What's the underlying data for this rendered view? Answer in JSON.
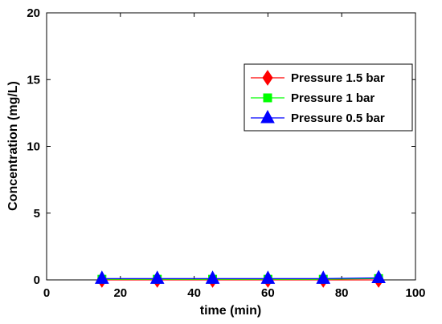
{
  "chart_data": {
    "type": "line",
    "title": "",
    "xlabel": "time (min)",
    "ylabel": "Concentration (mg/L)",
    "xlim": [
      0,
      100
    ],
    "ylim": [
      0,
      20
    ],
    "xticks": [
      0,
      20,
      40,
      60,
      80,
      100
    ],
    "yticks": [
      0,
      5,
      10,
      15,
      20
    ],
    "grid": false,
    "legend_position": "upper-right",
    "x": [
      15,
      30,
      45,
      60,
      75,
      90
    ],
    "series": [
      {
        "name": "Pressure 1.5 bar",
        "color": "#ff0000",
        "marker": "diamond",
        "values": [
          0.0,
          0.0,
          0.0,
          0.0,
          0.0,
          0.0
        ]
      },
      {
        "name": "Pressure 1 bar",
        "color": "#00ff00",
        "marker": "square",
        "values": [
          0.05,
          0.05,
          0.05,
          0.05,
          0.05,
          0.1
        ]
      },
      {
        "name": "Pressure 0.5 bar",
        "color": "#0000ff",
        "marker": "triangle",
        "values": [
          0.1,
          0.1,
          0.1,
          0.1,
          0.1,
          0.15
        ]
      }
    ]
  }
}
